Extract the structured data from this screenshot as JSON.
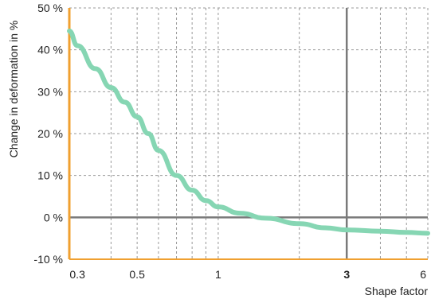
{
  "chart_data": {
    "type": "line",
    "title": "",
    "xlabel": "Shape factor",
    "ylabel": "Change in deformation in %",
    "x_scale": "log",
    "xlim": [
      0.28,
      6
    ],
    "ylim": [
      -10,
      50
    ],
    "x_ticks": [
      {
        "value": 0.3,
        "label": "0.3",
        "bold": false
      },
      {
        "value": 0.5,
        "label": "0.5",
        "bold": false
      },
      {
        "value": 1,
        "label": "1",
        "bold": false
      },
      {
        "value": 3,
        "label": "3",
        "bold": true
      },
      {
        "value": 6,
        "label": "6",
        "bold": false
      }
    ],
    "y_ticks": [
      {
        "value": -10,
        "label": "-10 %"
      },
      {
        "value": 0,
        "label": "0 %"
      },
      {
        "value": 10,
        "label": "10 %"
      },
      {
        "value": 20,
        "label": "20 %"
      },
      {
        "value": 30,
        "label": "30 %"
      },
      {
        "value": 40,
        "label": "40 %"
      },
      {
        "value": 50,
        "label": "50 %"
      }
    ],
    "x_gridlines": [
      0.4,
      0.5,
      0.6,
      0.7,
      0.8,
      0.9,
      1,
      2,
      3,
      4,
      5,
      6
    ],
    "y_gridlines": [
      10,
      20,
      30,
      40,
      50
    ],
    "reference_lines": {
      "x": 3,
      "y": 0
    },
    "grid": true,
    "series": [
      {
        "name": "",
        "color": "#86d6b3",
        "x": [
          0.28,
          0.3,
          0.35,
          0.4,
          0.45,
          0.5,
          0.55,
          0.6,
          0.7,
          0.8,
          0.9,
          1.0,
          1.2,
          1.5,
          2.0,
          2.5,
          3.0,
          4.0,
          5.0,
          6.0
        ],
        "y": [
          44.5,
          41,
          35.5,
          31,
          27.5,
          24,
          20,
          16,
          10,
          6.5,
          4,
          2.5,
          1,
          -0.2,
          -1.5,
          -2.5,
          -3,
          -3.3,
          -3.6,
          -3.8
        ]
      }
    ],
    "colors": {
      "left_axis": "#f0a030",
      "bottom_axis": "#f0a030",
      "reference": "#7a7a7a",
      "grid": "#999999"
    }
  }
}
